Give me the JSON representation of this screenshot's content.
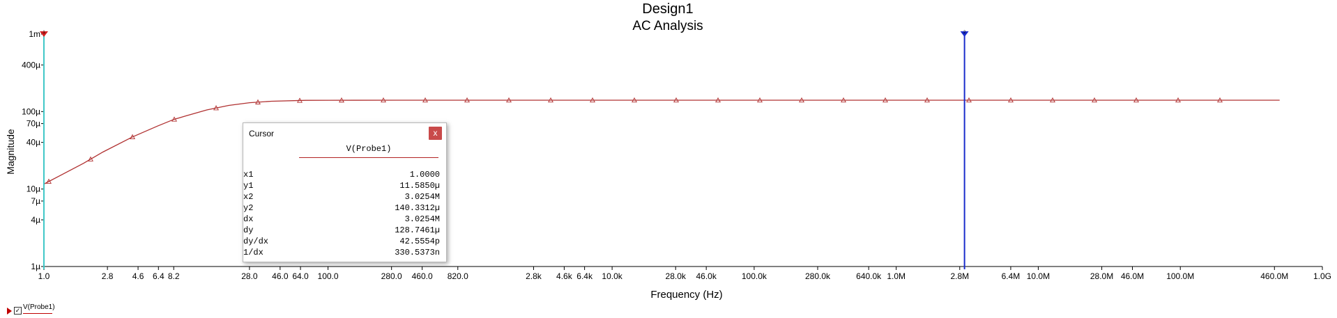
{
  "chart_data": {
    "type": "line",
    "title": "Design1",
    "subtitle": "AC Analysis",
    "xlabel": "Frequency (Hz)",
    "ylabel": "Magnitude",
    "xscale": "log",
    "yscale": "log",
    "xlim": [
      1,
      1000000000.0
    ],
    "ylim": [
      1e-06,
      0.001
    ],
    "grid": false,
    "x_ticks": [
      {
        "value": 1,
        "label": "1.0"
      },
      {
        "value": 2.8,
        "label": "2.8"
      },
      {
        "value": 4.6,
        "label": "4.6"
      },
      {
        "value": 6.4,
        "label": "6.4"
      },
      {
        "value": 8.2,
        "label": "8.2"
      },
      {
        "value": 28,
        "label": "28.0"
      },
      {
        "value": 46,
        "label": "46.0"
      },
      {
        "value": 64,
        "label": "64.0"
      },
      {
        "value": 100,
        "label": "100.0"
      },
      {
        "value": 280,
        "label": "280.0"
      },
      {
        "value": 460,
        "label": "460.0"
      },
      {
        "value": 820,
        "label": "820.0"
      },
      {
        "value": 2800,
        "label": "2.8k"
      },
      {
        "value": 4600,
        "label": "4.6k"
      },
      {
        "value": 6400,
        "label": "6.4k"
      },
      {
        "value": 10000,
        "label": "10.0k"
      },
      {
        "value": 28000,
        "label": "28.0k"
      },
      {
        "value": 46000,
        "label": "46.0k"
      },
      {
        "value": 100000,
        "label": "100.0k"
      },
      {
        "value": 280000,
        "label": "280.0k"
      },
      {
        "value": 640000,
        "label": "640.0k"
      },
      {
        "value": 1000000,
        "label": "1.0M"
      },
      {
        "value": 2800000,
        "label": "2.8M"
      },
      {
        "value": 6400000,
        "label": "6.4M"
      },
      {
        "value": 10000000,
        "label": "10.0M"
      },
      {
        "value": 28000000,
        "label": "28.0M"
      },
      {
        "value": 46000000,
        "label": "46.0M"
      },
      {
        "value": 100000000,
        "label": "100.0M"
      },
      {
        "value": 460000000,
        "label": "460.0M"
      },
      {
        "value": 1000000000,
        "label": "1.0G"
      }
    ],
    "y_ticks": [
      {
        "value": 1e-06,
        "label": "1µ"
      },
      {
        "value": 4e-06,
        "label": "4µ"
      },
      {
        "value": 7e-06,
        "label": "7µ"
      },
      {
        "value": 1e-05,
        "label": "10µ"
      },
      {
        "value": 4e-05,
        "label": "40µ"
      },
      {
        "value": 7e-05,
        "label": "70µ"
      },
      {
        "value": 0.0001,
        "label": "100µ"
      },
      {
        "value": 0.0004,
        "label": "400µ"
      },
      {
        "value": 0.001,
        "label": "1m"
      }
    ],
    "series": [
      {
        "name": "V(Probe1)",
        "color": "#b03030",
        "x": [
          1,
          1.9,
          2.6,
          4.2,
          6.3,
          8.2,
          10,
          14,
          20,
          28,
          40,
          70,
          100,
          300,
          1000,
          10000.0,
          100000.0,
          1000000.0,
          10000000.0,
          100000000.0,
          500000000.0
        ],
        "y": [
          1.16e-05,
          2.15e-05,
          3e-05,
          4.7e-05,
          6.5e-05,
          7.9e-05,
          8.8e-05,
          0.000105,
          0.00012,
          0.00013,
          0.000136,
          0.0001395,
          0.00014,
          0.0001403,
          0.0001403,
          0.0001403,
          0.0001403,
          0.0001403,
          0.0001403,
          0.0001403,
          0.0001403
        ]
      }
    ],
    "markers_x": [
      1,
      2.6,
      6.3,
      16,
      40,
      100,
      251,
      631,
      1585,
      3981,
      10000,
      25119,
      63096,
      158489,
      398107,
      1000000,
      2511886,
      6309573,
      15848932,
      39810717,
      100000000,
      251188643,
      630957344,
      1584893192,
      3981071706,
      10000000000,
      25118864315,
      63095734448,
      158489319246
    ],
    "cursors": [
      {
        "id": "1",
        "x": 1,
        "color": "#40c8c8",
        "handle_color": "#d02020"
      },
      {
        "id": "2",
        "x": 3025400,
        "color": "#1a2ccc",
        "handle_color": "#1a2ccc"
      }
    ]
  },
  "cursor_panel": {
    "title": "Cursor",
    "close_label": "x",
    "column_header": "V(Probe1)",
    "rows": [
      {
        "label": "x1",
        "value": "1.0000"
      },
      {
        "label": "y1",
        "value": "11.5850µ"
      },
      {
        "label": "x2",
        "value": "3.0254M"
      },
      {
        "label": "y2",
        "value": "140.3312µ"
      },
      {
        "label": "dx",
        "value": "3.0254M"
      },
      {
        "label": "dy",
        "value": "128.7461µ"
      },
      {
        "label": "dy/dx",
        "value": "42.5554p"
      },
      {
        "label": "1/dx",
        "value": "330.5373n"
      }
    ]
  },
  "legend": {
    "label": "V(Probe1)",
    "checked": true
  }
}
